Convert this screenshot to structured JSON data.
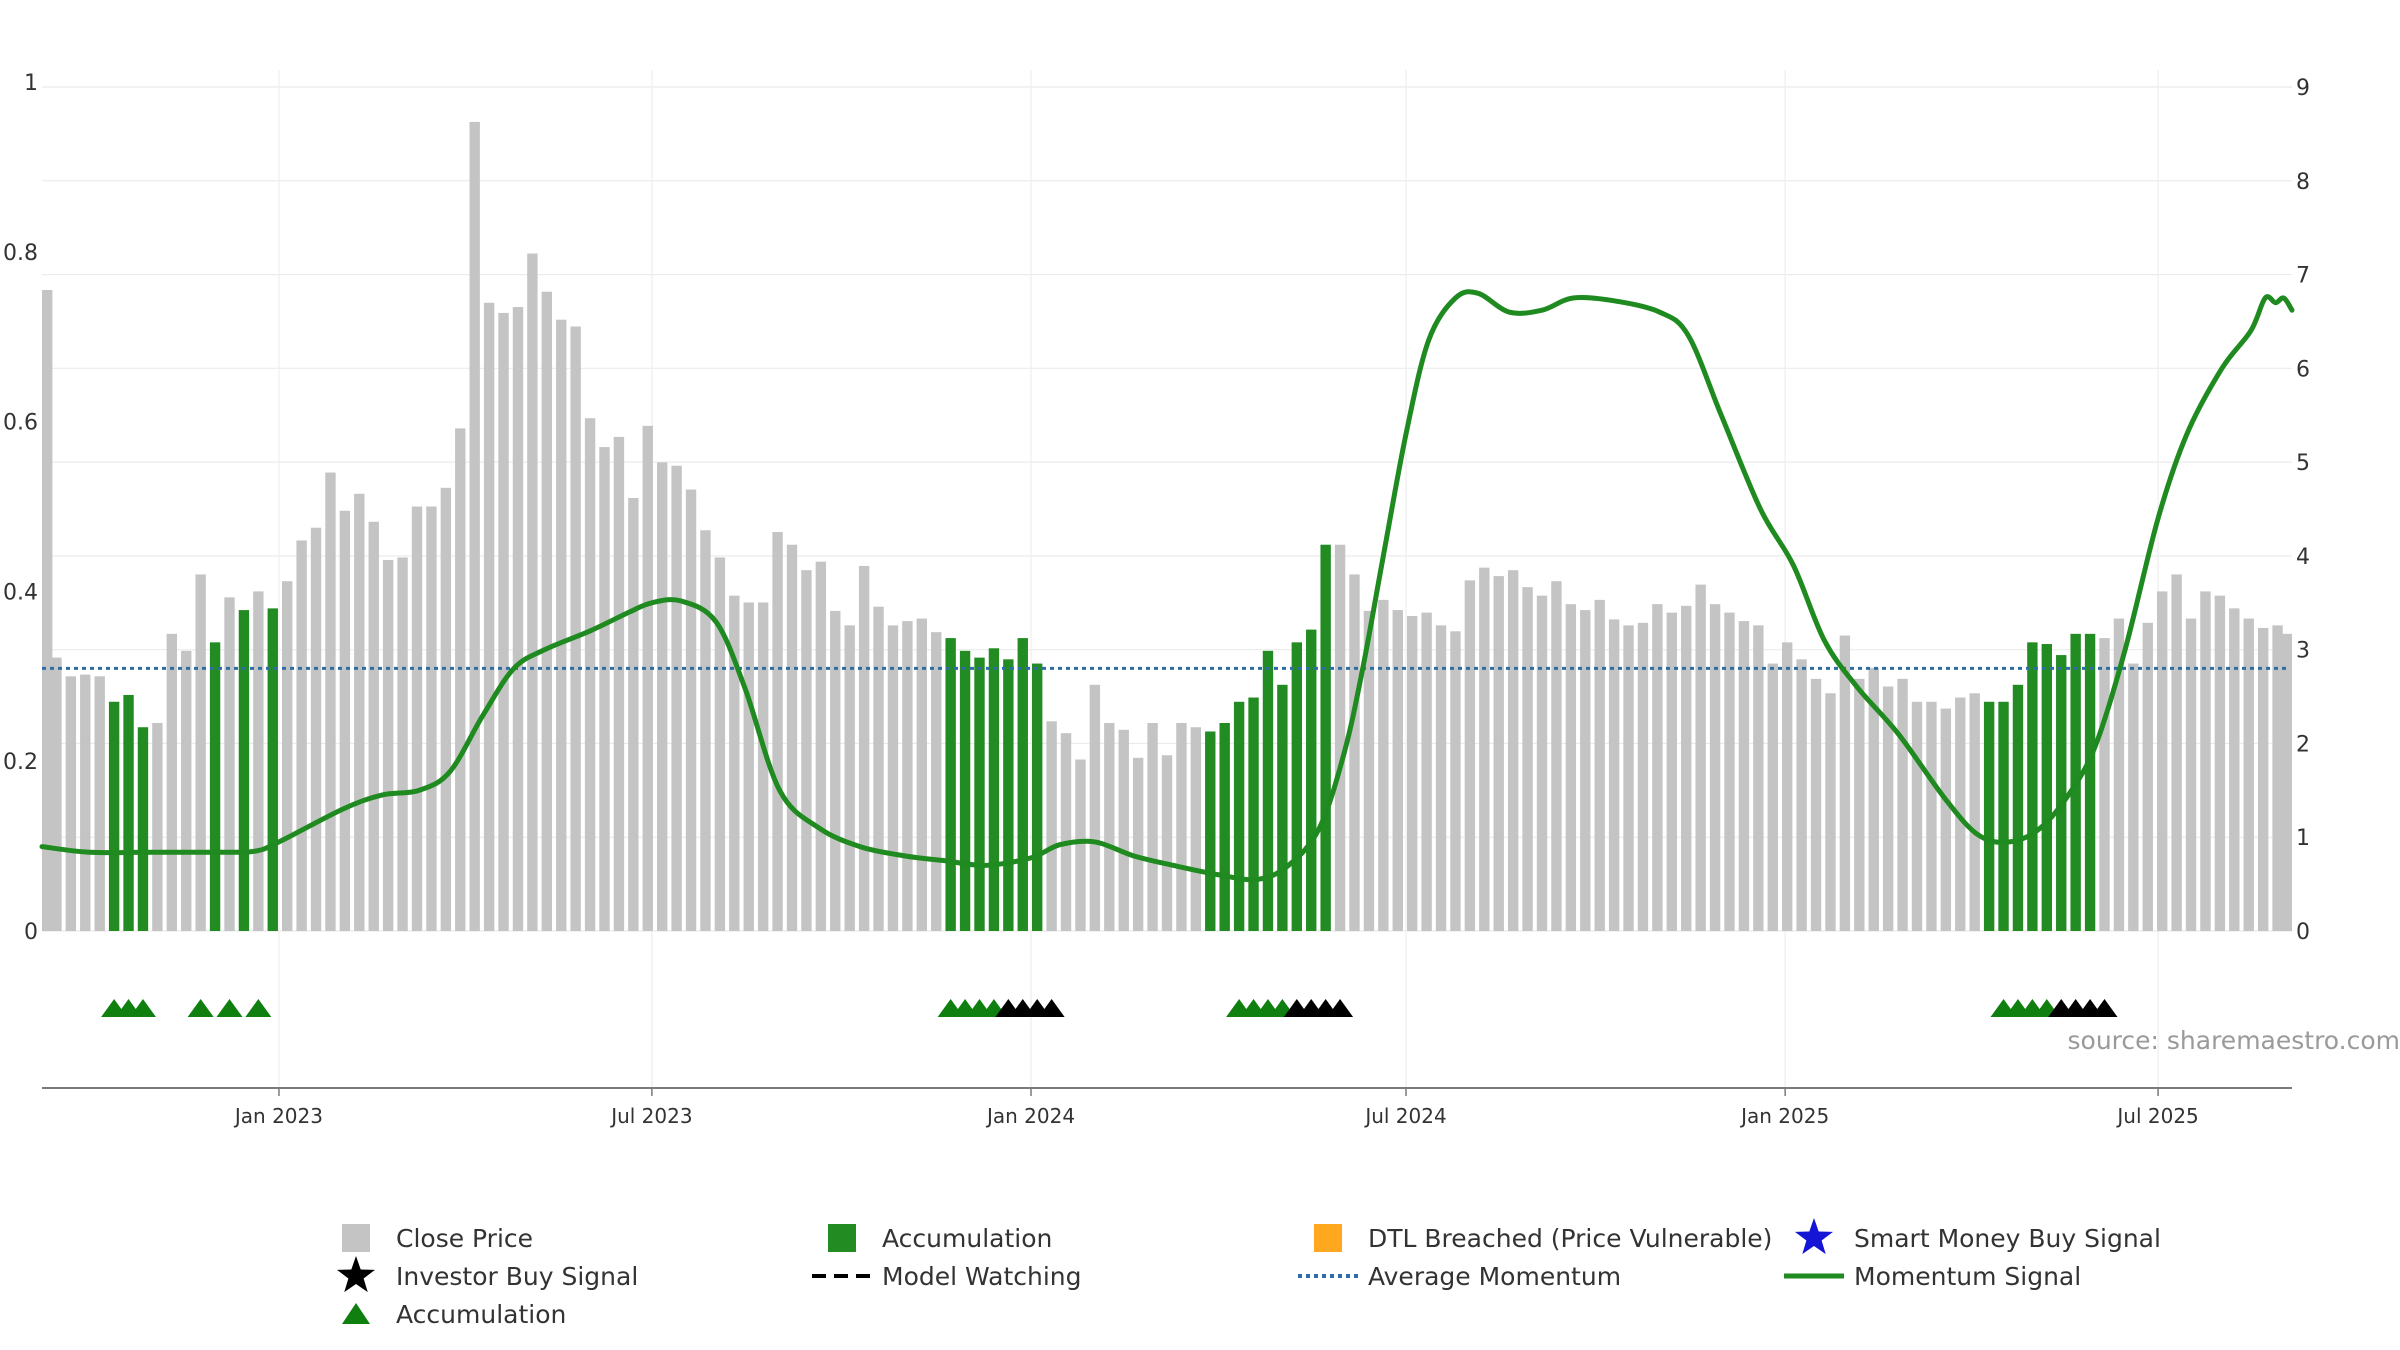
{
  "chart_data": {
    "type": "bar",
    "title": "",
    "xlabel": "",
    "ylabel": "",
    "x_range": [
      "2022-09-08",
      "2025-09-04"
    ],
    "x_ticks": [
      {
        "date": "2023-01-01",
        "label": "Jan 2023"
      },
      {
        "date": "2023-07-01",
        "label": "Jul 2023"
      },
      {
        "date": "2024-01-01",
        "label": "Jan 2024"
      },
      {
        "date": "2024-07-01",
        "label": "Jul 2024"
      },
      {
        "date": "2025-01-01",
        "label": "Jan 2025"
      },
      {
        "date": "2025-07-01",
        "label": "Jul 2025"
      }
    ],
    "y_left": {
      "range": [
        0,
        1
      ],
      "ticks": [
        0,
        0.2,
        0.4,
        0.6,
        0.8,
        1
      ],
      "tick_labels": [
        "0",
        "0.2",
        "0.4",
        "0.6",
        "0.8",
        "1"
      ]
    },
    "y_right": {
      "range": [
        0,
        9
      ],
      "ticks": [
        0,
        1,
        2,
        3,
        4,
        5,
        6,
        7,
        8,
        9
      ],
      "tick_labels": [
        "0",
        "1",
        "2",
        "3",
        "4",
        "5",
        "6",
        "7",
        "8",
        "9"
      ]
    },
    "grid": true,
    "colors": {
      "close_price": "#c4c4c4",
      "accumulation_bar": "#228b22",
      "momentum_line": "#1f8a1f",
      "average_momentum": "#2f6ea5",
      "accumulation_marker": "#0f7f0f",
      "investor_buy": "#000000",
      "dtl_breached": "#ffa81f",
      "smart_money": "#1515d6"
    },
    "bars": {
      "start": "2022-09-08",
      "step_days": 7,
      "values": [
        0.755,
        0.322,
        0.3,
        0.302,
        0.3,
        0.27,
        0.278,
        0.24,
        0.245,
        0.35,
        0.33,
        0.42,
        0.34,
        0.393,
        0.378,
        0.4,
        0.38,
        0.412,
        0.46,
        0.475,
        0.54,
        0.495,
        0.515,
        0.482,
        0.437,
        0.44,
        0.5,
        0.5,
        0.522,
        0.592,
        0.953,
        0.74,
        0.728,
        0.735,
        0.798,
        0.753,
        0.72,
        0.712,
        0.604,
        0.57,
        0.582,
        0.51,
        0.595,
        0.552,
        0.548,
        0.52,
        0.472,
        0.44,
        0.395,
        0.387,
        0.387,
        0.47,
        0.455,
        0.425,
        0.435,
        0.377,
        0.36,
        0.43,
        0.382,
        0.36,
        0.365,
        0.368,
        0.352,
        0.345,
        0.33,
        0.322,
        0.333,
        0.32,
        0.345,
        0.315,
        0.247,
        0.233,
        0.202,
        0.29,
        0.245,
        0.237,
        0.204,
        0.245,
        0.207,
        0.245,
        0.24,
        0.235,
        0.245,
        0.27,
        0.275,
        0.33,
        0.29,
        0.34,
        0.355,
        0.455,
        0.455,
        0.42,
        0.377,
        0.39,
        0.378,
        0.371,
        0.375,
        0.36,
        0.353,
        0.413,
        0.428,
        0.418,
        0.425,
        0.405,
        0.395,
        0.412,
        0.385,
        0.378,
        0.39,
        0.367,
        0.36,
        0.363,
        0.385,
        0.375,
        0.383,
        0.408,
        0.385,
        0.375,
        0.365,
        0.36,
        0.315,
        0.34,
        0.32,
        0.297,
        0.28,
        0.348,
        0.297,
        0.31,
        0.288,
        0.297,
        0.27,
        0.27,
        0.262,
        0.275,
        0.28,
        0.27,
        0.27,
        0.29,
        0.34,
        0.338,
        0.325,
        0.35,
        0.35,
        0.345,
        0.368,
        0.315,
        0.363,
        0.4,
        0.42,
        0.368,
        0.4,
        0.395,
        0.38,
        0.368,
        0.357,
        0.36,
        0.35
      ],
      "accumulation_index": [
        5,
        6,
        7,
        12,
        14,
        16,
        63,
        64,
        65,
        66,
        67,
        68,
        69,
        81,
        82,
        83,
        84,
        85,
        86,
        87,
        88,
        89,
        135,
        136,
        137,
        138,
        139,
        140,
        141,
        142
      ]
    },
    "series": [
      {
        "name": "Momentum Signal",
        "axis": "right",
        "type": "line",
        "points": [
          [
            "2022-09-08",
            0.9
          ],
          [
            "2022-10-01",
            0.84
          ],
          [
            "2022-11-01",
            0.84
          ],
          [
            "2022-12-01",
            0.84
          ],
          [
            "2022-12-20",
            0.85
          ],
          [
            "2023-01-01",
            0.95
          ],
          [
            "2023-02-01",
            1.3
          ],
          [
            "2023-02-20",
            1.45
          ],
          [
            "2023-03-10",
            1.5
          ],
          [
            "2023-03-25",
            1.7
          ],
          [
            "2023-04-10",
            2.3
          ],
          [
            "2023-04-25",
            2.8
          ],
          [
            "2023-05-10",
            3.0
          ],
          [
            "2023-06-01",
            3.2
          ],
          [
            "2023-06-20",
            3.4
          ],
          [
            "2023-07-01",
            3.5
          ],
          [
            "2023-07-15",
            3.52
          ],
          [
            "2023-08-01",
            3.3
          ],
          [
            "2023-08-15",
            2.6
          ],
          [
            "2023-09-01",
            1.5
          ],
          [
            "2023-09-20",
            1.1
          ],
          [
            "2023-10-10",
            0.9
          ],
          [
            "2023-11-01",
            0.8
          ],
          [
            "2023-11-20",
            0.75
          ],
          [
            "2023-12-10",
            0.7
          ],
          [
            "2024-01-01",
            0.78
          ],
          [
            "2024-01-15",
            0.92
          ],
          [
            "2024-02-01",
            0.95
          ],
          [
            "2024-02-20",
            0.8
          ],
          [
            "2024-03-10",
            0.7
          ],
          [
            "2024-04-01",
            0.6
          ],
          [
            "2024-04-20",
            0.55
          ],
          [
            "2024-05-05",
            0.7
          ],
          [
            "2024-05-20",
            1.1
          ],
          [
            "2024-06-01",
            1.9
          ],
          [
            "2024-06-10",
            2.8
          ],
          [
            "2024-06-20",
            4.0
          ],
          [
            "2024-07-01",
            5.3
          ],
          [
            "2024-07-12",
            6.3
          ],
          [
            "2024-07-25",
            6.75
          ],
          [
            "2024-08-05",
            6.8
          ],
          [
            "2024-08-20",
            6.6
          ],
          [
            "2024-09-05",
            6.62
          ],
          [
            "2024-09-20",
            6.75
          ],
          [
            "2024-10-10",
            6.72
          ],
          [
            "2024-11-01",
            6.6
          ],
          [
            "2024-11-15",
            6.35
          ],
          [
            "2024-12-01",
            5.5
          ],
          [
            "2024-12-20",
            4.5
          ],
          [
            "2025-01-05",
            3.9
          ],
          [
            "2025-01-20",
            3.1
          ],
          [
            "2025-02-05",
            2.6
          ],
          [
            "2025-02-25",
            2.1
          ],
          [
            "2025-03-20",
            1.4
          ],
          [
            "2025-04-05",
            1.02
          ],
          [
            "2025-04-20",
            0.95
          ],
          [
            "2025-05-05",
            1.1
          ],
          [
            "2025-05-20",
            1.5
          ],
          [
            "2025-06-01",
            2.0
          ],
          [
            "2025-06-15",
            3.0
          ],
          [
            "2025-07-01",
            4.4
          ],
          [
            "2025-07-15",
            5.3
          ],
          [
            "2025-08-01",
            6.0
          ],
          [
            "2025-08-15",
            6.4
          ],
          [
            "2025-08-22",
            6.75
          ],
          [
            "2025-08-27",
            6.7
          ],
          [
            "2025-08-31",
            6.75
          ],
          [
            "2025-09-04",
            6.62
          ]
        ]
      },
      {
        "name": "Average Momentum",
        "axis": "right",
        "type": "line",
        "value": 2.8
      }
    ],
    "markers": {
      "accumulation": [
        "2022-10-13",
        "2022-10-20",
        "2022-10-27",
        "2022-11-24",
        "2022-12-08",
        "2022-12-22",
        "2023-11-23",
        "2023-11-30",
        "2023-12-07",
        "2023-12-14",
        "2024-04-11",
        "2024-04-18",
        "2024-04-25",
        "2024-05-02",
        "2025-04-17",
        "2025-04-24",
        "2025-05-01",
        "2025-05-08"
      ],
      "investor_buy": [
        "2023-12-21",
        "2023-12-28",
        "2024-01-04",
        "2024-01-11",
        "2024-05-09",
        "2024-05-16",
        "2024-05-23",
        "2024-05-30",
        "2025-05-15",
        "2025-05-22",
        "2025-05-29",
        "2025-06-05"
      ]
    },
    "source": "source: sharemaestro.com",
    "legend": [
      {
        "label": "Close Price",
        "symbol": "square",
        "color": "#c4c4c4"
      },
      {
        "label": "Accumulation",
        "symbol": "square",
        "color": "#228b22"
      },
      {
        "label": "DTL Breached (Price Vulnerable)",
        "symbol": "square",
        "color": "#ffa81f"
      },
      {
        "label": "Smart Money Buy Signal",
        "symbol": "star",
        "color": "#1515d6"
      },
      {
        "label": "Investor Buy Signal",
        "symbol": "star",
        "color": "#000000"
      },
      {
        "label": "Model Watching",
        "symbol": "dash",
        "color": "#000000"
      },
      {
        "label": "Average Momentum",
        "symbol": "dot",
        "color": "#2f6ea5"
      },
      {
        "label": "Momentum Signal",
        "symbol": "line",
        "color": "#1f8a1f"
      },
      {
        "label": "Accumulation",
        "symbol": "triangle",
        "color": "#0f7f0f"
      }
    ]
  }
}
